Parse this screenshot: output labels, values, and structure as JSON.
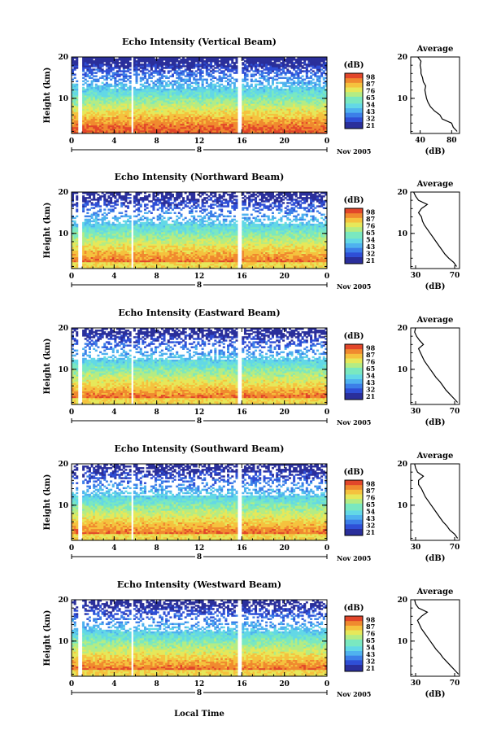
{
  "figure": {
    "date_label": "Nov 2005",
    "day_label": "8",
    "x_axis_label": "Local Time",
    "y_axis_label": "Height (km)",
    "colorbar_unit": "(dB)",
    "colorbar_ticks": [
      "21",
      "32",
      "43",
      "54",
      "65",
      "76",
      "87",
      "98"
    ],
    "colormap": [
      "#2a2f9b",
      "#2f4fd6",
      "#3c7fe8",
      "#4fb2ef",
      "#63d8e6",
      "#7ae8c0",
      "#b4ec84",
      "#e6e85a",
      "#f5c23e",
      "#f08a2f",
      "#e2462a"
    ],
    "average_title": "Average",
    "average_xlabel": "(dB)",
    "gap_hours": [
      [
        0.6,
        1.0
      ],
      [
        5.6,
        5.85
      ],
      [
        15.6,
        16.0
      ]
    ]
  },
  "chart_data": [
    {
      "type": "heatmap",
      "title": "Echo Intensity (Vertical Beam)",
      "xlabel": "Local Time",
      "ylabel": "Height (km)",
      "x_ticks": [
        "0",
        "4",
        "8",
        "12",
        "16",
        "20",
        "0"
      ],
      "y_ticks": [
        "10",
        "20"
      ],
      "xlim": [
        0,
        24
      ],
      "ylim": [
        1.5,
        20
      ],
      "colorbar_range": [
        21,
        98
      ],
      "average_profile": {
        "x_ticks": [
          "40",
          "80"
        ],
        "xlim": [
          28,
          90
        ],
        "height": [
          2,
          3,
          4,
          5,
          6,
          7,
          8,
          9,
          10,
          11,
          12,
          13,
          14,
          15,
          16,
          17,
          18,
          19,
          20
        ],
        "value": [
          87,
          82,
          80,
          68,
          65,
          58,
          53,
          50,
          48,
          47,
          46,
          47,
          44,
          43,
          41,
          41,
          40,
          41,
          37
        ]
      }
    },
    {
      "type": "heatmap",
      "title": "Echo Intensity (Northward Beam)",
      "xlabel": "Local Time",
      "ylabel": "Height (km)",
      "x_ticks": [
        "0",
        "4",
        "8",
        "12",
        "16",
        "20",
        "0"
      ],
      "y_ticks": [
        "10",
        "20"
      ],
      "xlim": [
        0,
        24
      ],
      "ylim": [
        1.5,
        20
      ],
      "colorbar_range": [
        21,
        98
      ],
      "average_profile": {
        "x_ticks": [
          "30",
          "70"
        ],
        "xlim": [
          25,
          75
        ],
        "height": [
          2,
          3,
          4,
          5,
          6,
          7,
          8,
          9,
          10,
          11,
          12,
          13,
          14,
          15,
          16,
          17,
          18,
          19,
          20
        ],
        "value": [
          72,
          69,
          64,
          60,
          57,
          54,
          51,
          48,
          45,
          42,
          39,
          37,
          36,
          33,
          36,
          42,
          33,
          30,
          28
        ]
      }
    },
    {
      "type": "heatmap",
      "title": "Echo Intensity (Eastward Beam)",
      "xlabel": "Local Time",
      "ylabel": "Height (km)",
      "x_ticks": [
        "0",
        "4",
        "8",
        "12",
        "16",
        "20",
        "0"
      ],
      "y_ticks": [
        "10",
        "20"
      ],
      "xlim": [
        0,
        24
      ],
      "ylim": [
        1.5,
        20
      ],
      "colorbar_range": [
        21,
        98
      ],
      "average_profile": {
        "x_ticks": [
          "30",
          "70"
        ],
        "xlim": [
          25,
          75
        ],
        "height": [
          2,
          3,
          4,
          5,
          6,
          7,
          8,
          9,
          10,
          11,
          12,
          13,
          14,
          15,
          16,
          17,
          18,
          19,
          20
        ],
        "value": [
          73,
          69,
          65,
          61,
          58,
          55,
          51,
          48,
          45,
          42,
          39,
          37,
          35,
          33,
          38,
          34,
          31,
          29,
          30
        ]
      }
    },
    {
      "type": "heatmap",
      "title": "Echo Intensity (Southward Beam)",
      "xlabel": "Local Time",
      "ylabel": "Height (km)",
      "x_ticks": [
        "0",
        "4",
        "8",
        "12",
        "16",
        "20",
        "0"
      ],
      "y_ticks": [
        "10",
        "20"
      ],
      "xlim": [
        0,
        24
      ],
      "ylim": [
        1.5,
        20
      ],
      "colorbar_range": [
        21,
        98
      ],
      "average_profile": {
        "x_ticks": [
          "30",
          "70"
        ],
        "xlim": [
          25,
          75
        ],
        "height": [
          2,
          3,
          4,
          5,
          6,
          7,
          8,
          9,
          10,
          11,
          12,
          13,
          14,
          15,
          16,
          17,
          18,
          19,
          20
        ],
        "value": [
          73,
          70,
          65,
          62,
          58,
          55,
          52,
          49,
          46,
          43,
          40,
          38,
          36,
          33,
          33,
          38,
          32,
          30,
          29
        ]
      }
    },
    {
      "type": "heatmap",
      "title": "Echo Intensity (Westward Beam)",
      "xlabel": "Local Time",
      "ylabel": "Height (km)",
      "x_ticks": [
        "0",
        "4",
        "8",
        "12",
        "16",
        "20",
        "0"
      ],
      "y_ticks": [
        "10",
        "20"
      ],
      "xlim": [
        0,
        24
      ],
      "ylim": [
        1.5,
        20
      ],
      "colorbar_range": [
        21,
        98
      ],
      "average_profile": {
        "x_ticks": [
          "30",
          "70"
        ],
        "xlim": [
          25,
          75
        ],
        "height": [
          2,
          3,
          4,
          5,
          6,
          7,
          8,
          9,
          10,
          11,
          12,
          13,
          14,
          15,
          16,
          17,
          18,
          19,
          20
        ],
        "value": [
          74,
          70,
          66,
          62,
          58,
          55,
          51,
          48,
          45,
          42,
          39,
          36,
          34,
          32,
          36,
          42,
          33,
          30,
          29
        ]
      }
    }
  ]
}
